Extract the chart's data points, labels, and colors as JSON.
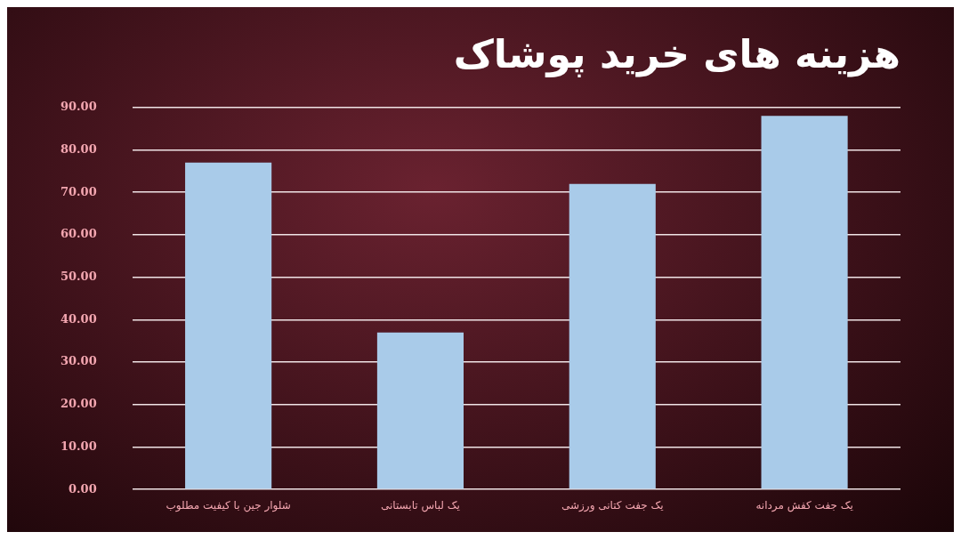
{
  "chart_data": {
    "type": "bar",
    "title": "هزینه های خرید پوشاک",
    "categories": [
      "شلوار جین با کیفیت مطلوب",
      "یک لباس تابستانی",
      "یک جفت کتانی ورزشی",
      "یک جفت کفش مردانه"
    ],
    "values": [
      77,
      37,
      72,
      88
    ],
    "color": "#a9cbe9",
    "ylim": [
      0,
      90
    ],
    "yticks": [
      {
        "value": 0,
        "label": "0.00"
      },
      {
        "value": 10,
        "label": "10.00"
      },
      {
        "value": 20,
        "label": "20.00"
      },
      {
        "value": 30,
        "label": "30.00"
      },
      {
        "value": 40,
        "label": "40.00"
      },
      {
        "value": 50,
        "label": "50.00"
      },
      {
        "value": 60,
        "label": "60.00"
      },
      {
        "value": 70,
        "label": "70.00"
      },
      {
        "value": 80,
        "label": "80.00"
      },
      {
        "value": 90,
        "label": "90.00"
      }
    ],
    "grid": "y",
    "legend": false
  }
}
